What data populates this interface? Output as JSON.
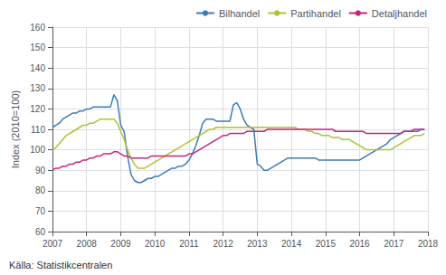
{
  "chart_data": {
    "type": "line",
    "ylabel": "Index (2010=100)",
    "annotations": [
      "Källa: Statistikcentralen"
    ],
    "xlim": [
      2007,
      2018
    ],
    "xticks": [
      2007,
      2008,
      2009,
      2010,
      2011,
      2012,
      2013,
      2014,
      2015,
      2016,
      2017,
      2018
    ],
    "ylim": [
      60,
      160
    ],
    "yticks": [
      60,
      70,
      80,
      90,
      100,
      110,
      120,
      130,
      140,
      150,
      160
    ],
    "grid": true,
    "legend": "upper right",
    "x": [
      2007.0,
      2007.1,
      2007.2,
      2007.3,
      2007.4,
      2007.5,
      2007.6,
      2007.7,
      2007.8,
      2007.9,
      2008.0,
      2008.1,
      2008.2,
      2008.3,
      2008.4,
      2008.5,
      2008.6,
      2008.7,
      2008.8,
      2008.9,
      2009.0,
      2009.1,
      2009.2,
      2009.3,
      2009.4,
      2009.5,
      2009.6,
      2009.7,
      2009.8,
      2009.9,
      2010.0,
      2010.1,
      2010.2,
      2010.3,
      2010.4,
      2010.5,
      2010.6,
      2010.7,
      2010.8,
      2010.9,
      2011.0,
      2011.1,
      2011.2,
      2011.3,
      2011.4,
      2011.5,
      2011.6,
      2011.7,
      2011.8,
      2011.9,
      2012.0,
      2012.1,
      2012.2,
      2012.3,
      2012.4,
      2012.5,
      2012.6,
      2012.7,
      2012.8,
      2012.9,
      2013.0,
      2013.1,
      2013.2,
      2013.3,
      2013.4,
      2013.5,
      2013.6,
      2013.7,
      2013.8,
      2013.9,
      2014.0,
      2014.1,
      2014.2,
      2014.3,
      2014.4,
      2014.5,
      2014.6,
      2014.7,
      2014.8,
      2014.9,
      2015.0,
      2015.1,
      2015.2,
      2015.3,
      2015.4,
      2015.5,
      2015.6,
      2015.7,
      2015.8,
      2015.9,
      2016.0,
      2016.1,
      2016.2,
      2016.3,
      2016.4,
      2016.5,
      2016.6,
      2016.7,
      2016.8,
      2016.9,
      2017.0,
      2017.1,
      2017.2,
      2017.3,
      2017.4,
      2017.5,
      2017.6,
      2017.7,
      2017.8,
      2017.9
    ],
    "series": [
      {
        "name": "Bilhandel",
        "color": "#3C7BB5",
        "values": [
          111,
          112,
          113,
          115,
          116,
          117,
          118,
          118,
          119,
          119,
          120,
          120,
          121,
          121,
          121,
          121,
          121,
          121,
          127,
          124,
          112,
          109,
          97,
          88,
          85,
          84,
          84,
          85,
          86,
          86,
          87,
          87,
          88,
          89,
          90,
          91,
          91,
          92,
          92,
          93,
          95,
          98,
          102,
          107,
          113,
          115,
          115,
          115,
          114,
          114,
          114,
          114,
          114,
          122,
          123,
          120,
          115,
          112,
          111,
          110,
          93,
          92,
          90,
          90,
          91,
          92,
          93,
          94,
          95,
          96,
          96,
          96,
          96,
          96,
          96,
          96,
          96,
          96,
          95,
          95,
          95,
          95,
          95,
          95,
          95,
          95,
          95,
          95,
          95,
          95,
          95,
          96,
          97,
          98,
          99,
          100,
          101,
          102,
          103,
          105,
          106,
          107,
          108,
          109,
          109,
          109,
          109,
          109,
          110,
          110
        ]
      },
      {
        "name": "Partihandel",
        "color": "#B0C230",
        "values": [
          100,
          101,
          103,
          105,
          107,
          108,
          109,
          110,
          111,
          112,
          112,
          113,
          113,
          114,
          115,
          115,
          115,
          115,
          115,
          113,
          109,
          105,
          100,
          96,
          93,
          91,
          91,
          91,
          92,
          93,
          94,
          95,
          96,
          97,
          98,
          99,
          100,
          101,
          102,
          103,
          104,
          105,
          106,
          107,
          108,
          109,
          110,
          110,
          111,
          111,
          111,
          111,
          111,
          111,
          111,
          111,
          111,
          111,
          111,
          111,
          111,
          111,
          111,
          111,
          111,
          111,
          111,
          111,
          111,
          111,
          111,
          111,
          110,
          110,
          110,
          109,
          109,
          108,
          108,
          107,
          107,
          107,
          106,
          106,
          106,
          105,
          105,
          105,
          104,
          103,
          102,
          101,
          100,
          100,
          100,
          100,
          100,
          100,
          100,
          100,
          101,
          102,
          103,
          104,
          105,
          106,
          107,
          107,
          107,
          108
        ]
      },
      {
        "name": "Detaljhandel",
        "color": "#C62580",
        "values": [
          90,
          91,
          91,
          92,
          92,
          93,
          93,
          94,
          94,
          95,
          95,
          96,
          96,
          97,
          97,
          98,
          98,
          98,
          99,
          99,
          98,
          97,
          97,
          96,
          96,
          96,
          96,
          96,
          96,
          97,
          97,
          97,
          97,
          97,
          97,
          97,
          97,
          97,
          97,
          97,
          98,
          98,
          99,
          100,
          101,
          102,
          103,
          104,
          105,
          106,
          107,
          107,
          108,
          108,
          108,
          108,
          108,
          109,
          109,
          109,
          109,
          109,
          109,
          110,
          110,
          110,
          110,
          110,
          110,
          110,
          110,
          110,
          110,
          110,
          110,
          110,
          110,
          110,
          110,
          110,
          110,
          110,
          110,
          109,
          109,
          109,
          109,
          109,
          109,
          109,
          109,
          109,
          108,
          108,
          108,
          108,
          108,
          108,
          108,
          108,
          108,
          108,
          108,
          109,
          109,
          109,
          110,
          110,
          110,
          110
        ]
      }
    ]
  }
}
